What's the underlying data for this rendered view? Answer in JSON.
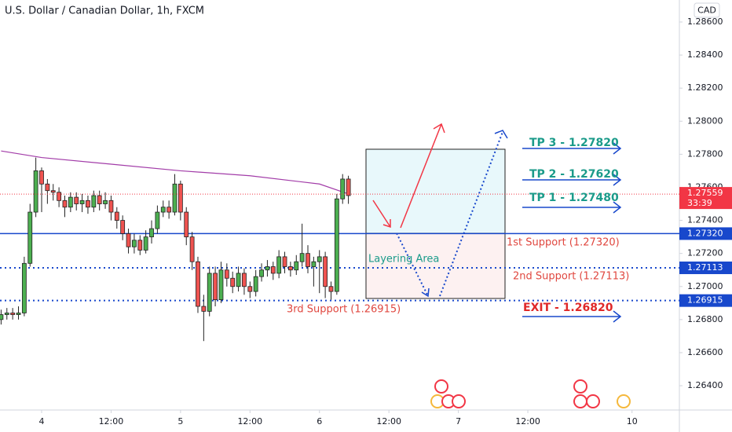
{
  "chart_data": {
    "type": "candlestick",
    "title": "U.S. Dollar / Canadian Dollar, 1h, FXCM",
    "y_axis_label": "CAD",
    "x": [
      -7,
      -6,
      -5,
      -4,
      -3,
      -2,
      -1,
      0,
      1,
      2,
      3,
      4,
      5,
      6,
      7,
      8,
      9,
      10,
      11,
      12,
      13,
      14,
      15,
      16,
      17,
      18,
      19,
      20,
      21,
      22,
      23,
      24,
      25,
      26,
      27,
      28,
      29,
      30,
      31,
      32,
      33,
      34,
      35,
      36,
      37,
      38,
      39,
      40,
      41,
      42,
      43,
      44,
      45,
      46,
      47,
      48,
      49,
      50,
      51,
      52,
      53
    ],
    "open": [
      1.268,
      1.2683,
      1.2684,
      1.2683,
      1.2684,
      1.2714,
      1.2745,
      1.277,
      1.2762,
      1.2758,
      1.2757,
      1.2752,
      1.2748,
      1.2754,
      1.275,
      1.2752,
      1.2748,
      1.2755,
      1.275,
      1.2752,
      1.2745,
      1.274,
      1.2732,
      1.2724,
      1.2728,
      1.2722,
      1.273,
      1.2735,
      1.2745,
      1.2748,
      1.2745,
      1.2762,
      1.2745,
      1.273,
      1.2715,
      1.2688,
      1.2685,
      1.2708,
      1.2692,
      1.271,
      1.2705,
      1.27,
      1.2708,
      1.27,
      1.2697,
      1.2706,
      1.271,
      1.2712,
      1.2708,
      1.2718,
      1.2712,
      1.271,
      1.2715,
      1.272,
      1.2712,
      1.2715,
      1.2718,
      1.27,
      1.2697,
      1.2753,
      1.2765
    ],
    "high": [
      1.2686,
      1.2687,
      1.2687,
      1.2688,
      1.2718,
      1.275,
      1.2778,
      1.2772,
      1.2765,
      1.2762,
      1.276,
      1.2755,
      1.2757,
      1.2757,
      1.2756,
      1.2755,
      1.2758,
      1.2758,
      1.2757,
      1.2755,
      1.2748,
      1.2743,
      1.2735,
      1.2732,
      1.2731,
      1.2734,
      1.274,
      1.2749,
      1.2752,
      1.2752,
      1.2768,
      1.2764,
      1.2748,
      1.2733,
      1.2718,
      1.2695,
      1.2712,
      1.2712,
      1.2715,
      1.2714,
      1.2709,
      1.2712,
      1.2711,
      1.2703,
      1.271,
      1.2714,
      1.2716,
      1.2715,
      1.2722,
      1.2721,
      1.2715,
      1.2719,
      1.2738,
      1.2725,
      1.2718,
      1.2722,
      1.2721,
      1.2703,
      1.2756,
      1.2768,
      1.2767
    ],
    "low": [
      1.2677,
      1.268,
      1.268,
      1.268,
      1.2682,
      1.2712,
      1.2742,
      1.2745,
      1.275,
      1.2752,
      1.2748,
      1.2742,
      1.2745,
      1.2746,
      1.2745,
      1.2744,
      1.2745,
      1.2746,
      1.2747,
      1.274,
      1.2735,
      1.2728,
      1.272,
      1.272,
      1.2719,
      1.272,
      1.2726,
      1.2732,
      1.2742,
      1.2741,
      1.2743,
      1.274,
      1.2725,
      1.271,
      1.2684,
      1.2667,
      1.2682,
      1.2688,
      1.269,
      1.27,
      1.2696,
      1.2697,
      1.2695,
      1.2693,
      1.2694,
      1.2703,
      1.2706,
      1.2704,
      1.2705,
      1.2708,
      1.2706,
      1.2707,
      1.2712,
      1.2708,
      1.27,
      1.2696,
      1.2693,
      1.2692,
      1.2695,
      1.275,
      1.275
    ],
    "close": [
      1.2683,
      1.2684,
      1.2683,
      1.2684,
      1.2714,
      1.2745,
      1.277,
      1.2762,
      1.2758,
      1.2757,
      1.2752,
      1.2748,
      1.2754,
      1.275,
      1.2752,
      1.2748,
      1.2755,
      1.275,
      1.2752,
      1.2745,
      1.274,
      1.2732,
      1.2724,
      1.2728,
      1.2722,
      1.273,
      1.2735,
      1.2745,
      1.2748,
      1.2745,
      1.2762,
      1.2745,
      1.273,
      1.2715,
      1.2688,
      1.2685,
      1.2708,
      1.2692,
      1.271,
      1.2705,
      1.27,
      1.2708,
      1.27,
      1.2697,
      1.2706,
      1.271,
      1.2712,
      1.2708,
      1.2718,
      1.2712,
      1.271,
      1.2715,
      1.272,
      1.2712,
      1.2715,
      1.2718,
      1.27,
      1.2697,
      1.2753,
      1.2765,
      1.2755
    ],
    "up_color": "#4caf50",
    "down_color": "#ef5350",
    "ma": {
      "x": [
        -7,
        0,
        12,
        24,
        36,
        48,
        53
      ],
      "values": [
        1.2782,
        1.2778,
        1.2774,
        1.277,
        1.2767,
        1.2762,
        1.2756
      ],
      "color": "#a23ca8"
    },
    "levels": [
      {
        "value": 1.2732,
        "label": "1.27320",
        "dash": false
      },
      {
        "value": 1.27113,
        "label": "1.27113",
        "dash": true
      },
      {
        "value": 1.26915,
        "label": "1.26915",
        "dash": true
      }
    ],
    "level_color": "#1848cc",
    "price": {
      "value": 1.27559,
      "label": "1.27559",
      "countdown": "33:39",
      "color": "#f23645"
    },
    "annotations": [
      "TP 3 - 1.27820",
      "TP 2 - 1.27620",
      "TP 1 - 1.27480",
      "1st Support (1.27320)",
      "Layering Area",
      "2nd Support (1.27113)",
      "3rd Support (1.26915)",
      "EXIT - 1.26820"
    ],
    "ylim": [
      1.26253,
      1.28733
    ],
    "yticks": [
      {
        "value": 1.286,
        "label": "1.28600"
      },
      {
        "value": 1.284,
        "label": "1.28400"
      },
      {
        "value": 1.282,
        "label": "1.28200"
      },
      {
        "value": 1.28,
        "label": "1.28000"
      },
      {
        "value": 1.278,
        "label": "1.27800"
      },
      {
        "value": 1.276,
        "label": "1.27600"
      },
      {
        "value": 1.274,
        "label": "1.27400"
      },
      {
        "value": 1.272,
        "label": "1.27200"
      },
      {
        "value": 1.27,
        "label": "1.27000"
      },
      {
        "value": 1.268,
        "label": "1.26800"
      },
      {
        "value": 1.266,
        "label": "1.26600"
      },
      {
        "value": 1.264,
        "label": "1.26400"
      }
    ],
    "xlim": [
      -7.19,
      110.18
    ],
    "xticks": [
      {
        "value": 0,
        "label": "4"
      },
      {
        "value": 12,
        "label": "12:00"
      },
      {
        "value": 24,
        "label": "5"
      },
      {
        "value": 36,
        "label": "12:00"
      },
      {
        "value": 48,
        "label": "6"
      },
      {
        "value": 60,
        "label": "12:00"
      },
      {
        "value": 72,
        "label": "7"
      },
      {
        "value": 84,
        "label": "12:00"
      },
      {
        "value": 102,
        "label": "10"
      }
    ],
    "grid": false
  }
}
